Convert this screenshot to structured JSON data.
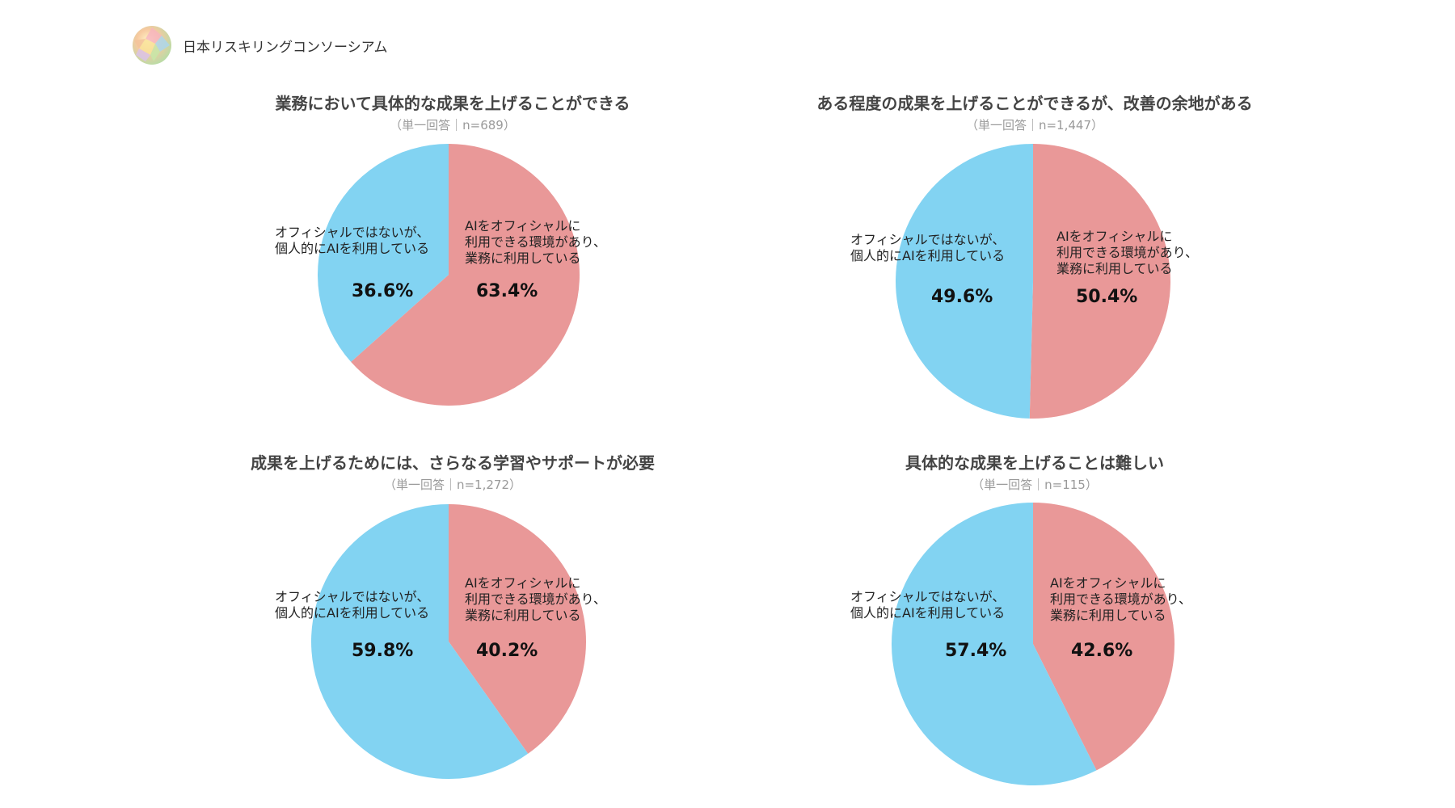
{
  "header": {
    "org_name": "日本リスキリングコンソーシアム",
    "logo_icon": "faceted-sphere-logo"
  },
  "colors": {
    "official": "#e99898",
    "personal": "#82d3f2"
  },
  "chart_data": [
    {
      "type": "pie",
      "title": "業務において具体的な成果を上げることができる",
      "subtitle": "（単一回答｜n=689）",
      "slices": [
        {
          "label": "AIをオフィシャルに\n利用できる環境があり、\n業務に利用している",
          "value": 63.4,
          "display": "63.4%",
          "color": "#e99898"
        },
        {
          "label": "オフィシャルではないが、\n個人的にAIを利用している",
          "value": 36.6,
          "display": "36.6%",
          "color": "#82d3f2"
        }
      ]
    },
    {
      "type": "pie",
      "title": "ある程度の成果を上げることができるが、改善の余地がある",
      "subtitle": "（単一回答｜n=1,447）",
      "slices": [
        {
          "label": "AIをオフィシャルに\n利用できる環境があり、\n業務に利用している",
          "value": 50.4,
          "display": "50.4%",
          "color": "#e99898"
        },
        {
          "label": "オフィシャルではないが、\n個人的にAIを利用している",
          "value": 49.6,
          "display": "49.6%",
          "color": "#82d3f2"
        }
      ]
    },
    {
      "type": "pie",
      "title": "成果を上げるためには、さらなる学習やサポートが必要",
      "subtitle": "（単一回答｜n=1,272）",
      "slices": [
        {
          "label": "AIをオフィシャルに\n利用できる環境があり、\n業務に利用している",
          "value": 40.2,
          "display": "40.2%",
          "color": "#e99898"
        },
        {
          "label": "オフィシャルではないが、\n個人的にAIを利用している",
          "value": 59.8,
          "display": "59.8%",
          "color": "#82d3f2"
        }
      ]
    },
    {
      "type": "pie",
      "title": "具体的な成果を上げることは難しい",
      "subtitle": "（単一回答｜n=115）",
      "slices": [
        {
          "label": "AIをオフィシャルに\n利用できる環境があり、\n業務に利用している",
          "value": 42.6,
          "display": "42.6%",
          "color": "#e99898"
        },
        {
          "label": "オフィシャルではないが、\n個人的にAIを利用している",
          "value": 57.4,
          "display": "57.4%",
          "color": "#82d3f2"
        }
      ]
    }
  ]
}
